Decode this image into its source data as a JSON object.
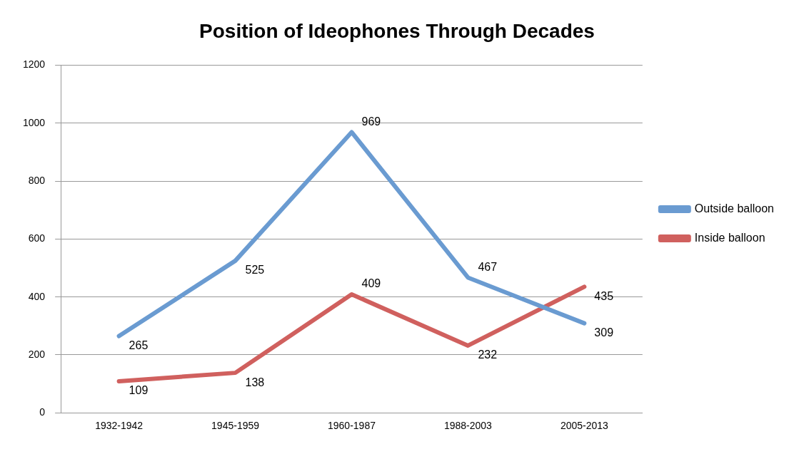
{
  "chart_data": {
    "type": "line",
    "title": "Position of Ideophones Through Decades",
    "categories": [
      "1932-1942",
      "1945-1959",
      "1960-1987",
      "1988-2003",
      "2005-2013"
    ],
    "series": [
      {
        "name": "Outside balloon",
        "color": "#6a9bd1",
        "values": [
          265,
          525,
          969,
          467,
          309
        ]
      },
      {
        "name": "Inside balloon",
        "color": "#d0605e",
        "values": [
          109,
          138,
          409,
          232,
          435
        ]
      }
    ],
    "ylim": [
      0,
      1200
    ],
    "yticks": [
      0,
      200,
      400,
      600,
      800,
      1000,
      1200
    ],
    "grid": "y",
    "legend": "right",
    "marker": "none",
    "line_style": "solid",
    "data_labels": true
  }
}
